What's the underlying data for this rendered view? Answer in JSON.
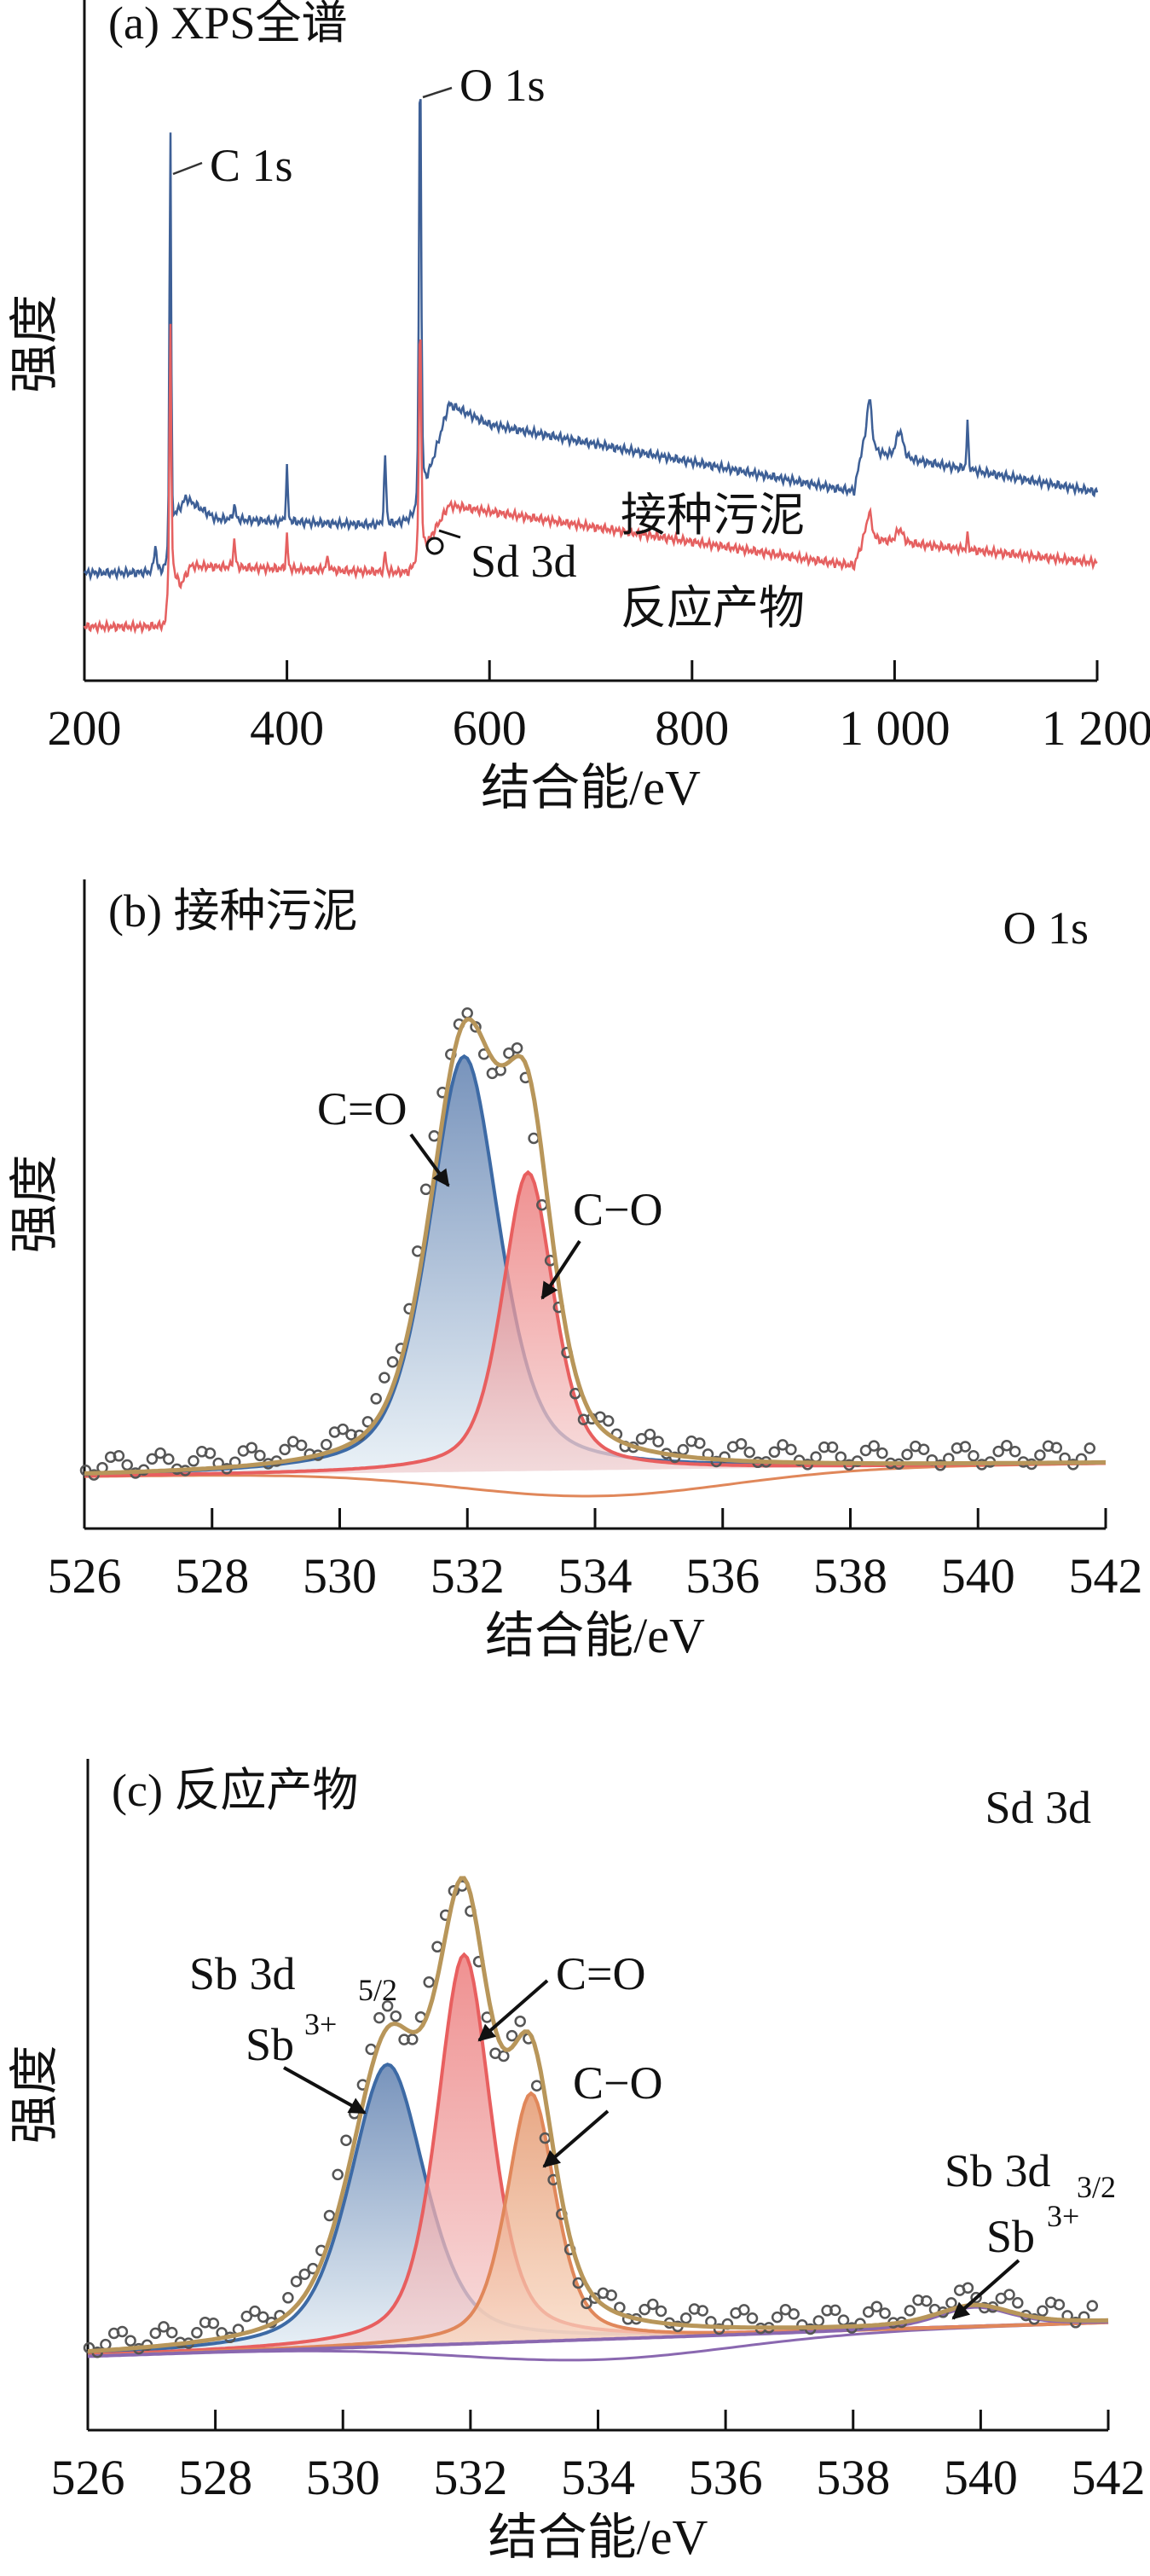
{
  "chart_data": [
    {
      "type": "line",
      "title": "(a)  XPS全谱",
      "xlabel": "结合能/eV",
      "ylabel": "强度",
      "xlim": [
        200,
        1200
      ],
      "xticks": [
        200,
        400,
        600,
        800,
        1000,
        1200
      ],
      "xtick_labels": [
        "200",
        "400",
        "600",
        "800",
        "1 000",
        "1 200"
      ],
      "ylim": [
        0,
        100
      ],
      "units_note": "intensity in arbitrary units",
      "series": [
        {
          "name": "接种污泥",
          "color": "#3d5f96",
          "background": [
            [
              200,
              16
            ],
            [
              282,
              16
            ],
            [
              290,
              24
            ],
            [
              300,
              27
            ],
            [
              330,
              24
            ],
            [
              500,
              23
            ],
            [
              528,
              24
            ],
            [
              545,
              33
            ],
            [
              560,
              41
            ],
            [
              600,
              38
            ],
            [
              960,
              28
            ],
            [
              968,
              34
            ],
            [
              1200,
              28
            ]
          ],
          "peaks": [
            [
              270,
              4,
              3
            ],
            [
              284.8,
              64,
              2
            ],
            [
              348,
              2,
              3
            ],
            [
              400,
              8,
              2
            ],
            [
              497,
              10,
              2.5
            ],
            [
              531.5,
              69,
              2.5
            ],
            [
              975,
              8,
              6
            ],
            [
              1005,
              4,
              8
            ],
            [
              1072,
              7,
              2
            ]
          ]
        },
        {
          "name": "反应产物",
          "color": "#e56060",
          "background": [
            [
              200,
              8
            ],
            [
              280,
              8
            ],
            [
              286,
              16
            ],
            [
              295,
              14
            ],
            [
              305,
              17
            ],
            [
              520,
              16
            ],
            [
              528,
              17
            ],
            [
              545,
              22
            ],
            [
              560,
              26
            ],
            [
              960,
              17
            ],
            [
              970,
              21
            ],
            [
              1200,
              17.5
            ]
          ],
          "peaks": [
            [
              284.8,
              39,
              2
            ],
            [
              348,
              4,
              2.5
            ],
            [
              400,
              5,
              2
            ],
            [
              440,
              1.5,
              4
            ],
            [
              497,
              3,
              2
            ],
            [
              531.5,
              37,
              2.5
            ],
            [
              975,
              4,
              6
            ],
            [
              1005,
              2,
              8
            ],
            [
              1072,
              2,
              2
            ]
          ]
        }
      ],
      "annotations": [
        {
          "text": "C 1s",
          "x": 284.8
        },
        {
          "text": "O 1s",
          "x": 531.5
        },
        {
          "text": "Sd 3d",
          "x": 540
        },
        {
          "text": "接种污泥"
        },
        {
          "text": "反应产物"
        }
      ]
    },
    {
      "type": "line",
      "title": "(b)  接种污泥",
      "corner_label": "O 1s",
      "xlabel": "结合能/eV",
      "ylabel": "强度",
      "xlim": [
        526,
        542
      ],
      "xticks": [
        526,
        528,
        530,
        532,
        534,
        536,
        538,
        540,
        542
      ],
      "xtick_labels": [
        "526",
        "528",
        "530",
        "532",
        "534",
        "536",
        "538",
        "540",
        "542"
      ],
      "ylim": [
        0,
        100
      ],
      "baseline": [
        8,
        10
      ],
      "components": [
        {
          "name": "C=O",
          "center": 531.95,
          "height": 64,
          "fwhm": 1.3,
          "color": "#3d6aa5"
        },
        {
          "name": "C−O",
          "center": 532.95,
          "height": 46,
          "fwhm": 0.95,
          "color": "#e85f5f"
        }
      ],
      "envelope_color": "#b8965a",
      "annotations": [
        {
          "text": "C=O"
        },
        {
          "text": "C−O"
        }
      ]
    },
    {
      "type": "line",
      "title": "(c)  反应产物",
      "corner_label": "Sd 3d",
      "xlabel": "结合能/eV",
      "ylabel": "强度",
      "xlim": [
        526,
        542
      ],
      "xticks": [
        526,
        528,
        530,
        532,
        534,
        536,
        538,
        540,
        542
      ],
      "xtick_labels": [
        "526",
        "528",
        "530",
        "532",
        "534",
        "536",
        "538",
        "540",
        "542"
      ],
      "ylim": [
        0,
        100
      ],
      "baseline": [
        11,
        16
      ],
      "components": [
        {
          "name": "Sb 3d5/2 Sb3+",
          "center": 530.7,
          "height": 42,
          "fwhm": 1.4,
          "color": "#3d6aa5"
        },
        {
          "name": "C=O",
          "center": 531.9,
          "height": 58,
          "fwhm": 1.0,
          "color": "#e85f5f"
        },
        {
          "name": "C−O",
          "center": 532.95,
          "height": 37,
          "fwhm": 0.9,
          "color": "#e0875a"
        },
        {
          "name": "Sb 3d3/2 Sb3+",
          "center": 539.9,
          "height": 3,
          "fwhm": 1.4,
          "color": "#8a68b0"
        }
      ],
      "envelope_color": "#b8965a",
      "annotations": [
        {
          "text": "Sb 3d",
          "sub": "5/2"
        },
        {
          "text": "Sb",
          "sup": "3+"
        },
        {
          "text": "C=O"
        },
        {
          "text": "C−O"
        },
        {
          "text": "Sb 3d",
          "sub": "3/2"
        },
        {
          "text": "Sb",
          "sup": "3+"
        }
      ]
    }
  ]
}
